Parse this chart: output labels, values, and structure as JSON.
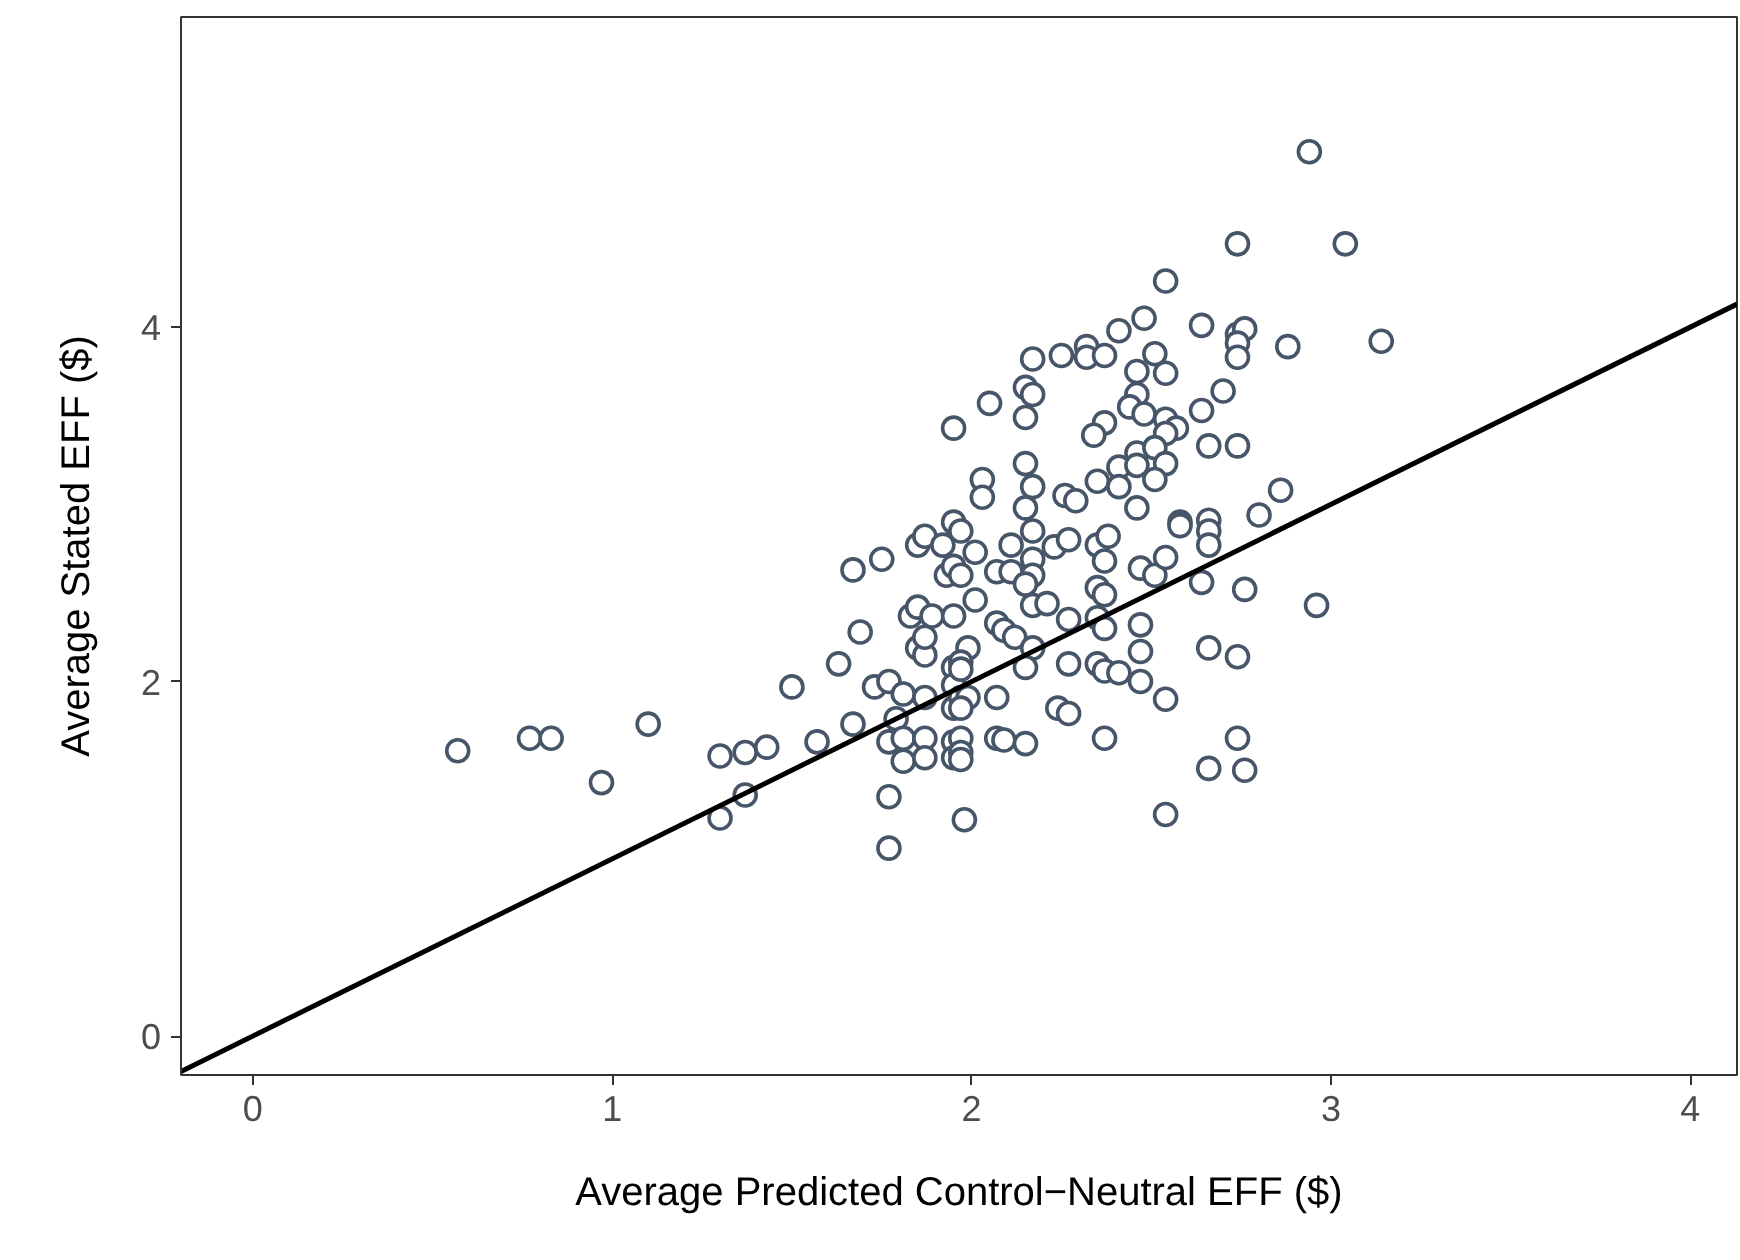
{
  "chart_data": {
    "type": "scatter",
    "xlabel": "Average Predicted Control−Neutral EFF ($)",
    "ylabel": "Average Stated EFF ($)",
    "xlim": [
      -0.2,
      4.13
    ],
    "ylim": [
      -0.22,
      5.75
    ],
    "xticks": [
      0,
      1,
      2,
      3,
      4
    ],
    "yticks": [
      0,
      2,
      4
    ],
    "grid": false,
    "series": [
      {
        "marker": "circle",
        "color": "#475569",
        "x": [
          0.57,
          0.77,
          0.83,
          1.1,
          0.97,
          1.3,
          1.37,
          1.43,
          1.3,
          1.37,
          1.5,
          1.57,
          1.63,
          1.67,
          1.69,
          1.75,
          1.67,
          1.73,
          1.77,
          1.81,
          1.79,
          1.77,
          1.81,
          1.81,
          1.87,
          1.87,
          1.87,
          1.77,
          1.77,
          1.85,
          1.87,
          1.92,
          1.93,
          1.83,
          1.85,
          1.89,
          1.85,
          1.87,
          1.95,
          1.95,
          1.95,
          1.95,
          1.95,
          1.95,
          1.95,
          1.95,
          1.95,
          1.98,
          2.94,
          2.74,
          3.04,
          2.54,
          3.14,
          2.48,
          2.64,
          2.41,
          2.74,
          2.76,
          2.74,
          2.74,
          2.88,
          2.32,
          2.32,
          2.37,
          2.25,
          2.17,
          2.51,
          2.46,
          2.54,
          2.05,
          2.15,
          2.17,
          2.15,
          2.46,
          2.44,
          2.48,
          2.64,
          2.7,
          2.37,
          2.34,
          2.54,
          2.57,
          2.54,
          2.66,
          2.74,
          2.15,
          2.03,
          2.03,
          2.17,
          2.15,
          2.26,
          2.29,
          2.35,
          2.41,
          2.41,
          2.46,
          2.51,
          2.46,
          2.54,
          2.51,
          2.46,
          2.86,
          2.8,
          2.66,
          2.58,
          2.58,
          2.66,
          2.66,
          2.17,
          1.97,
          2.01,
          2.11,
          2.23,
          2.27,
          2.35,
          2.38,
          2.37,
          2.47,
          2.51,
          2.54,
          2.64,
          2.76,
          2.96,
          1.97,
          2.07,
          2.11,
          2.17,
          2.17,
          2.15,
          2.17,
          2.21,
          2.35,
          2.37,
          2.01,
          2.07,
          2.09,
          2.27,
          2.35,
          2.37,
          2.47,
          2.47,
          2.12,
          2.17,
          2.15,
          2.27,
          2.35,
          2.37,
          2.41,
          2.47,
          2.54,
          2.66,
          2.74,
          1.87,
          1.99,
          1.97,
          1.97,
          1.97,
          1.99,
          1.97,
          2.07,
          1.97,
          1.97,
          1.97,
          2.07,
          2.09,
          2.15,
          2.24,
          2.27,
          2.37,
          2.54,
          2.66,
          2.74,
          2.76
        ],
        "values": [
          1.61,
          1.68,
          1.68,
          1.76,
          1.43,
          1.58,
          1.6,
          1.63,
          1.23,
          1.36,
          1.97,
          1.66,
          2.1,
          2.63,
          2.28,
          2.69,
          1.76,
          1.97,
          2.0,
          1.93,
          1.79,
          1.66,
          1.68,
          1.55,
          1.68,
          1.57,
          1.91,
          1.35,
          1.06,
          2.77,
          2.82,
          2.77,
          2.6,
          2.37,
          2.42,
          2.37,
          2.19,
          2.15,
          3.43,
          2.9,
          2.65,
          2.37,
          2.08,
          1.98,
          1.85,
          1.66,
          1.57,
          1.22,
          4.99,
          4.47,
          4.47,
          4.26,
          3.92,
          4.05,
          4.01,
          3.98,
          3.96,
          3.99,
          3.91,
          3.83,
          3.89,
          3.89,
          3.83,
          3.84,
          3.84,
          3.82,
          3.85,
          3.75,
          3.74,
          3.57,
          3.66,
          3.62,
          3.49,
          3.62,
          3.55,
          3.51,
          3.53,
          3.64,
          3.46,
          3.39,
          3.48,
          3.43,
          3.4,
          3.33,
          3.33,
          3.23,
          3.14,
          3.04,
          3.1,
          2.98,
          3.05,
          3.02,
          3.13,
          3.21,
          3.1,
          3.29,
          3.32,
          3.22,
          3.23,
          3.14,
          2.98,
          3.08,
          2.94,
          2.91,
          2.9,
          2.88,
          2.85,
          2.77,
          2.85,
          2.85,
          2.73,
          2.77,
          2.76,
          2.8,
          2.77,
          2.82,
          2.68,
          2.64,
          2.6,
          2.7,
          2.56,
          2.52,
          2.43,
          2.6,
          2.62,
          2.62,
          2.69,
          2.6,
          2.55,
          2.43,
          2.44,
          2.53,
          2.49,
          2.46,
          2.33,
          2.29,
          2.35,
          2.36,
          2.3,
          2.32,
          2.17,
          2.25,
          2.19,
          2.08,
          2.1,
          2.1,
          2.06,
          2.05,
          2.0,
          1.9,
          2.19,
          2.14,
          2.25,
          2.19,
          2.11,
          2.07,
          1.91,
          1.91,
          1.85,
          1.91,
          1.68,
          1.6,
          1.56,
          1.68,
          1.67,
          1.65,
          1.85,
          1.82,
          1.68,
          1.25,
          1.51,
          1.68,
          1.5
        ]
      },
      {
        "type": "line",
        "color": "#000000",
        "x": [
          -0.2,
          4.13
        ],
        "values": [
          -0.2,
          4.13
        ]
      }
    ]
  }
}
